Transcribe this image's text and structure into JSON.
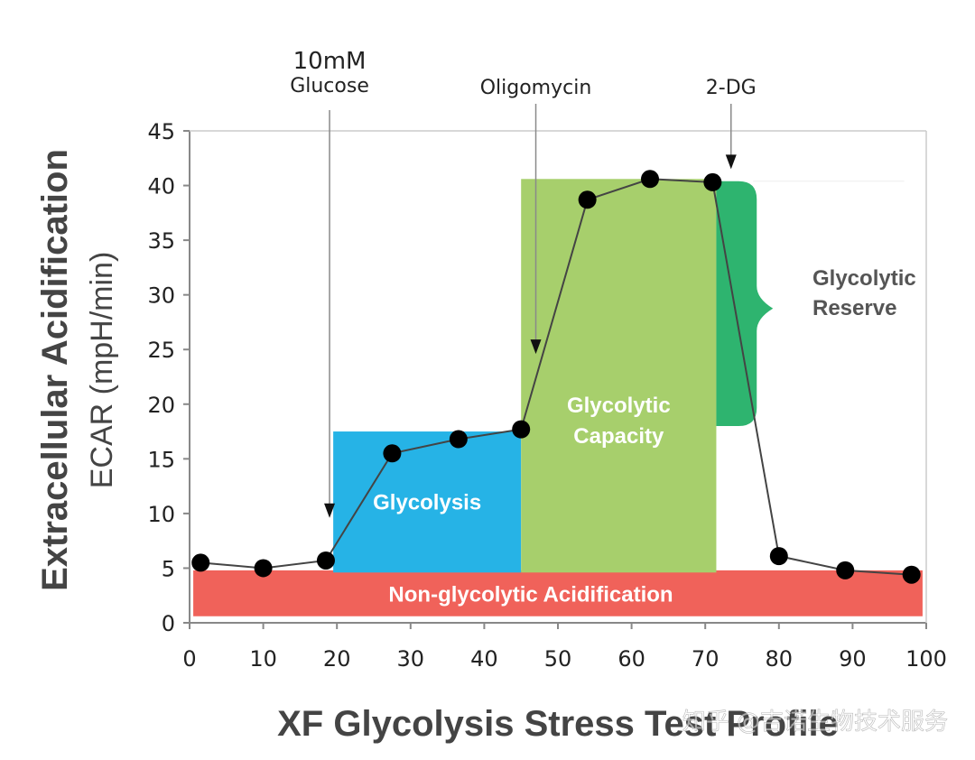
{
  "chart_data": {
    "type": "line",
    "title": "XF Glycolysis Stress Test Profile",
    "ylabel_main": "Extracellular Acidification",
    "ylabel_sub": "ECAR (mpH/min)",
    "xlim": [
      0,
      100
    ],
    "ylim": [
      0,
      45
    ],
    "xticks": [
      "0",
      "10",
      "20",
      "30",
      "40",
      "50",
      "60",
      "70",
      "80",
      "90",
      "100"
    ],
    "yticks": [
      "0",
      "5",
      "10",
      "15",
      "20",
      "25",
      "30",
      "35",
      "40",
      "45"
    ],
    "series": [
      {
        "name": "ECAR",
        "x": [
          1.5,
          10,
          18.5,
          27.5,
          36.5,
          45,
          54,
          62.5,
          71,
          80,
          89,
          98
        ],
        "y": [
          5.5,
          5.0,
          5.7,
          15.5,
          16.8,
          17.7,
          38.7,
          40.6,
          40.3,
          6.1,
          4.8,
          4.4
        ]
      }
    ],
    "regions": [
      {
        "name": "non_glycolytic",
        "label": "Non-glycolytic Acidification",
        "x": [
          0.5,
          99.5
        ],
        "y": [
          0.6,
          4.8
        ],
        "color": "#f0625a"
      },
      {
        "name": "glycolysis",
        "label": "Glycolysis",
        "x": [
          19.5,
          45
        ],
        "y": [
          4.6,
          17.5
        ],
        "color": "#26b3e6"
      },
      {
        "name": "glycolytic_capacity",
        "label_lines": [
          "Glycolytic",
          "Capacity"
        ],
        "x": [
          45,
          71.5
        ],
        "y": [
          4.6,
          40.6
        ],
        "color": "#a7cf6c"
      },
      {
        "name": "glycolytic_reserve",
        "label_lines": [
          "Glycolytic",
          "Reserve"
        ],
        "x": [
          71.5,
          76.5
        ],
        "y": [
          18.0,
          40.4
        ],
        "color": "#2eb46f"
      }
    ],
    "injections": [
      {
        "x": 19,
        "label_lines": [
          "10mM",
          "Glucose"
        ]
      },
      {
        "x": 47,
        "label_lines": [
          "Oligomycin"
        ]
      },
      {
        "x": 73.5,
        "label_lines": [
          "2-DG"
        ]
      }
    ]
  },
  "watermark": "知乎 @吉诺生物技术服务",
  "colors": {
    "line": "#444444",
    "marker": "#000000",
    "axis": "#888888",
    "grid": "#cccccc"
  }
}
